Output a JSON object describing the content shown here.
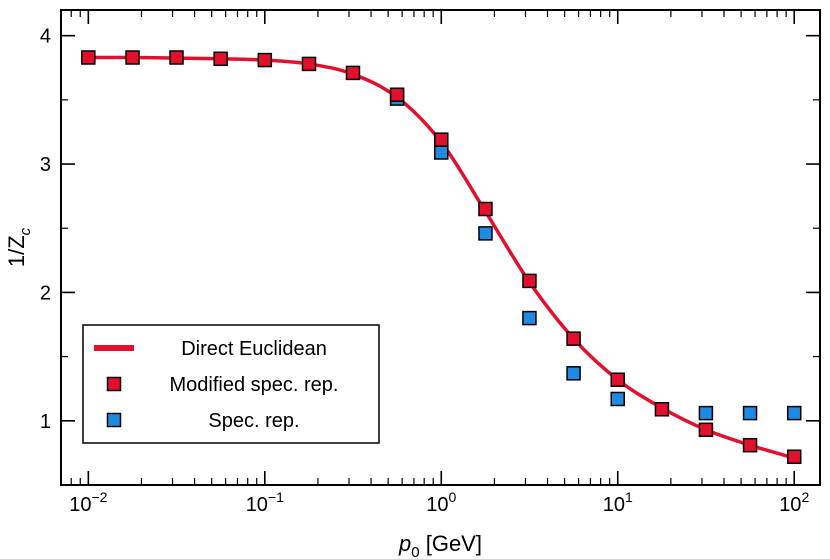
{
  "chart_data": {
    "type": "scatter",
    "x_scale": "log",
    "xlim": [
      0.007,
      140
    ],
    "ylim": [
      0.5,
      4.2
    ],
    "xlabel": {
      "main": "p",
      "sub": "0",
      "unit": " [GeV]"
    },
    "ylabel": {
      "main": "1/Z",
      "sub": "c"
    },
    "x_ticks": [
      {
        "value": 0.01,
        "base": "10",
        "exp": "−2"
      },
      {
        "value": 0.1,
        "base": "10",
        "exp": "−1"
      },
      {
        "value": 1,
        "base": "10",
        "exp": "0"
      },
      {
        "value": 10,
        "base": "10",
        "exp": "1"
      },
      {
        "value": 100,
        "base": "10",
        "exp": "2"
      }
    ],
    "y_ticks": [
      {
        "value": 1,
        "label": "1"
      },
      {
        "value": 2,
        "label": "2"
      },
      {
        "value": 3,
        "label": "3"
      },
      {
        "value": 4,
        "label": "4"
      }
    ],
    "legend_position": "bottom-left",
    "series": [
      {
        "name": "Direct Euclidean",
        "kind": "line",
        "color": "#e3102d",
        "x": [
          0.01,
          0.0178,
          0.0316,
          0.0562,
          0.1,
          0.178,
          0.316,
          0.562,
          1.0,
          1.78,
          3.16,
          5.62,
          10,
          17.8,
          31.6,
          56.2,
          100
        ],
        "y": [
          3.83,
          3.83,
          3.825,
          3.82,
          3.81,
          3.78,
          3.7,
          3.52,
          3.17,
          2.63,
          2.08,
          1.64,
          1.32,
          1.1,
          0.93,
          0.81,
          0.71
        ]
      },
      {
        "name": "Modified spec. rep.",
        "kind": "marker",
        "color": "#e3102d",
        "x": [
          0.01,
          0.0178,
          0.0316,
          0.0562,
          0.1,
          0.178,
          0.316,
          0.562,
          1.0,
          1.78,
          3.16,
          5.62,
          10,
          17.8,
          31.6,
          56.2,
          100
        ],
        "y": [
          3.83,
          3.83,
          3.83,
          3.82,
          3.81,
          3.78,
          3.71,
          3.54,
          3.19,
          2.65,
          2.09,
          1.64,
          1.32,
          1.09,
          0.93,
          0.81,
          0.72
        ]
      },
      {
        "name": "Spec. rep.",
        "kind": "marker",
        "color": "#1f8ae0",
        "x": [
          0.562,
          1.0,
          1.78,
          3.16,
          5.62,
          10,
          31.6,
          56.2,
          100
        ],
        "y": [
          3.51,
          3.09,
          2.46,
          1.8,
          1.37,
          1.17,
          1.06,
          1.06,
          1.06
        ]
      }
    ]
  }
}
